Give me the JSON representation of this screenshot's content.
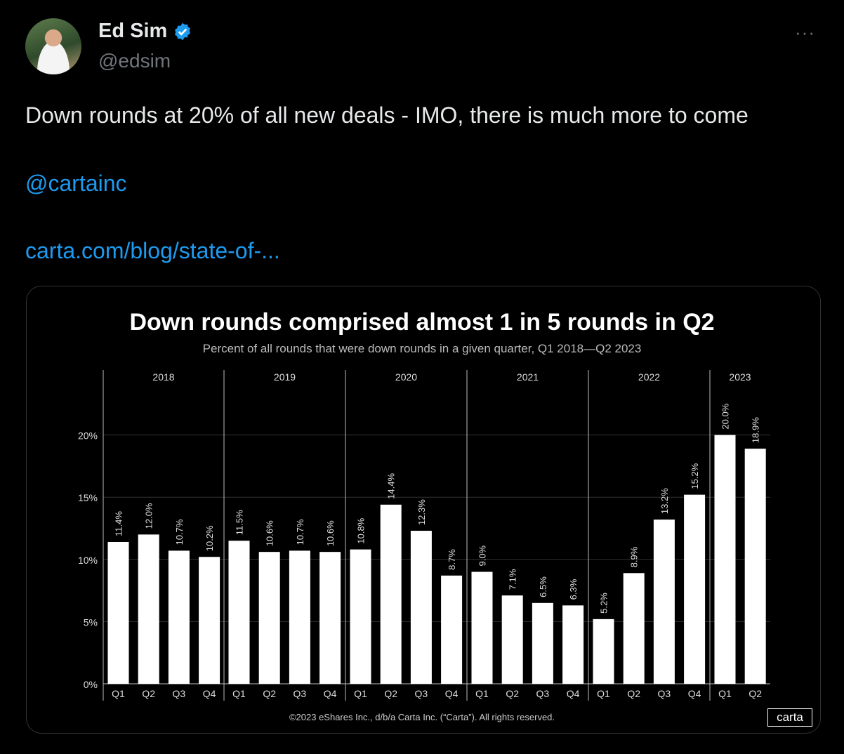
{
  "tweet": {
    "author_name": "Ed Sim",
    "author_handle": "@edsim",
    "text": "Down rounds at 20% of all new deals - IMO, there is much more to come",
    "mention": "@cartainc",
    "link": "carta.com/blog/state-of-...",
    "more_label": "···"
  },
  "icons": {
    "verified": "verified-badge-icon",
    "more": "more-options-icon"
  },
  "colors": {
    "link": "#1d9bf0",
    "verified": "#1d9bf0",
    "bar": "#ffffff",
    "background": "#000000"
  },
  "chart_data": {
    "type": "bar",
    "title": "Down rounds comprised almost 1 in 5 rounds in Q2",
    "subtitle": "Percent of all rounds that were down rounds in a given quarter, Q1 2018—Q2 2023",
    "footer": "©2023 eShares Inc., d/b/a Carta Inc. (“Carta”). All rights reserved.",
    "logo_text": "carta",
    "ylim": [
      0,
      25
    ],
    "yticks": [
      0,
      5,
      10,
      15,
      20
    ],
    "ytick_labels": [
      "0%",
      "5%",
      "10%",
      "15%",
      "20%"
    ],
    "grid": true,
    "groups": [
      {
        "year": "2018",
        "quarters": [
          "Q1",
          "Q2",
          "Q3",
          "Q4"
        ],
        "values": [
          11.4,
          12.0,
          10.7,
          10.2
        ],
        "labels": [
          "11.4%",
          "12.0%",
          "10.7%",
          "10.2%"
        ]
      },
      {
        "year": "2019",
        "quarters": [
          "Q1",
          "Q2",
          "Q3",
          "Q4"
        ],
        "values": [
          11.5,
          10.6,
          10.7,
          10.6
        ],
        "labels": [
          "11.5%",
          "10.6%",
          "10.7%",
          "10.6%"
        ]
      },
      {
        "year": "2020",
        "quarters": [
          "Q1",
          "Q2",
          "Q3",
          "Q4"
        ],
        "values": [
          10.8,
          14.4,
          12.3,
          8.7
        ],
        "labels": [
          "10.8%",
          "14.4%",
          "12.3%",
          "8.7%"
        ]
      },
      {
        "year": "2021",
        "quarters": [
          "Q1",
          "Q2",
          "Q3",
          "Q4"
        ],
        "values": [
          9.0,
          7.1,
          6.5,
          6.3
        ],
        "labels": [
          "9.0%",
          "7.1%",
          "6.5%",
          "6.3%"
        ]
      },
      {
        "year": "2022",
        "quarters": [
          "Q1",
          "Q2",
          "Q3",
          "Q4"
        ],
        "values": [
          5.2,
          8.9,
          13.2,
          15.2
        ],
        "labels": [
          "5.2%",
          "8.9%",
          "13.2%",
          "15.2%"
        ]
      },
      {
        "year": "2023",
        "quarters": [
          "Q1",
          "Q2"
        ],
        "values": [
          20.0,
          18.9
        ],
        "labels": [
          "20.0%",
          "18.9%"
        ]
      }
    ]
  }
}
